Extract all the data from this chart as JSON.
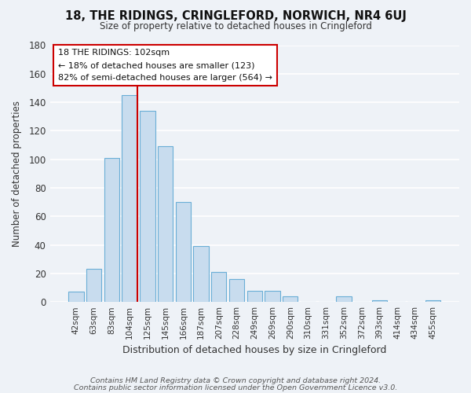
{
  "title": "18, THE RIDINGS, CRINGLEFORD, NORWICH, NR4 6UJ",
  "subtitle": "Size of property relative to detached houses in Cringleford",
  "xlabel": "Distribution of detached houses by size in Cringleford",
  "ylabel": "Number of detached properties",
  "bar_labels": [
    "42sqm",
    "63sqm",
    "83sqm",
    "104sqm",
    "125sqm",
    "145sqm",
    "166sqm",
    "187sqm",
    "207sqm",
    "228sqm",
    "249sqm",
    "269sqm",
    "290sqm",
    "310sqm",
    "331sqm",
    "352sqm",
    "372sqm",
    "393sqm",
    "414sqm",
    "434sqm",
    "455sqm"
  ],
  "bar_values": [
    7,
    23,
    101,
    145,
    134,
    109,
    70,
    39,
    21,
    16,
    8,
    8,
    4,
    0,
    0,
    4,
    0,
    1,
    0,
    0,
    1
  ],
  "bar_color": "#c8dcee",
  "bar_edge_color": "#6aaed6",
  "ylim": [
    0,
    180
  ],
  "yticks": [
    0,
    20,
    40,
    60,
    80,
    100,
    120,
    140,
    160,
    180
  ],
  "ref_bar_index": 3,
  "ref_line_color": "#cc0000",
  "annotation_title": "18 THE RIDINGS: 102sqm",
  "annotation_line1": "← 18% of detached houses are smaller (123)",
  "annotation_line2": "82% of semi-detached houses are larger (564) →",
  "annotation_box_color": "#ffffff",
  "annotation_box_edge": "#cc0000",
  "footer1": "Contains HM Land Registry data © Crown copyright and database right 2024.",
  "footer2": "Contains public sector information licensed under the Open Government Licence v3.0.",
  "background_color": "#eef2f7",
  "plot_bg_color": "#eef2f7",
  "grid_color": "#ffffff"
}
